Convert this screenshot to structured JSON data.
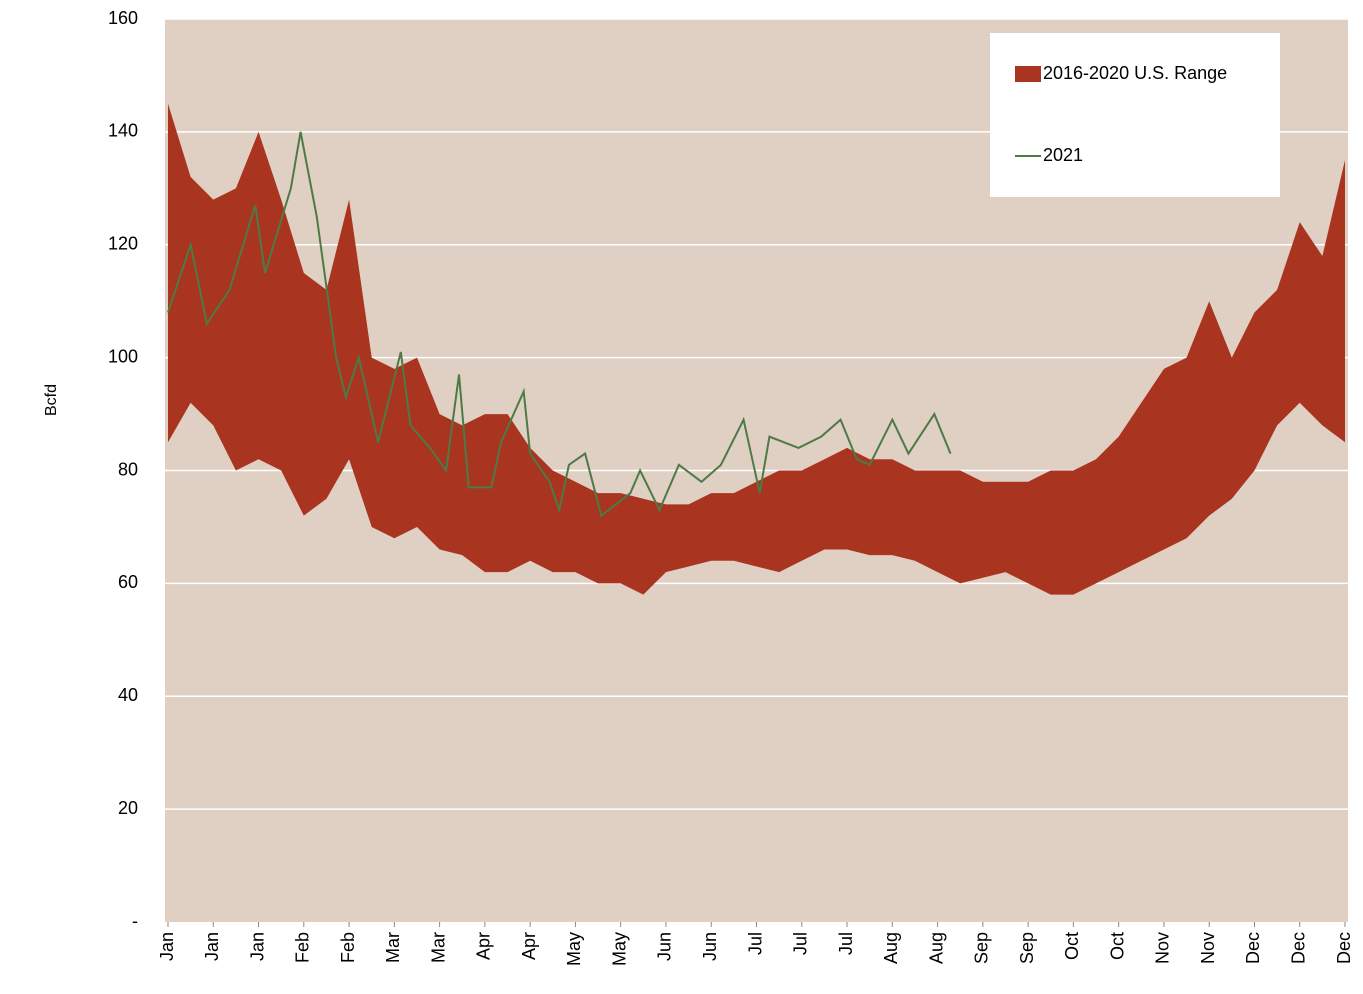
{
  "chart_data": {
    "type": "range-line",
    "ylabel": "Bcfd",
    "xlim": [
      1,
      365
    ],
    "xticks": [
      {
        "value": 1,
        "label": "Jan"
      },
      {
        "value": 15,
        "label": "Jan"
      },
      {
        "value": 29,
        "label": "Jan"
      },
      {
        "value": 43,
        "label": "Feb"
      },
      {
        "value": 57,
        "label": "Feb"
      },
      {
        "value": 71,
        "label": "Mar"
      },
      {
        "value": 85,
        "label": "Mar"
      },
      {
        "value": 99,
        "label": "Apr"
      },
      {
        "value": 113,
        "label": "Apr"
      },
      {
        "value": 127,
        "label": "May"
      },
      {
        "value": 141,
        "label": "May"
      },
      {
        "value": 155,
        "label": "Jun"
      },
      {
        "value": 169,
        "label": "Jun"
      },
      {
        "value": 183,
        "label": "Jul"
      },
      {
        "value": 197,
        "label": "Jul"
      },
      {
        "value": 211,
        "label": "Jul"
      },
      {
        "value": 225,
        "label": "Aug"
      },
      {
        "value": 239,
        "label": "Aug"
      },
      {
        "value": 253,
        "label": "Sep"
      },
      {
        "value": 267,
        "label": "Sep"
      },
      {
        "value": 281,
        "label": "Oct"
      },
      {
        "value": 295,
        "label": "Oct"
      },
      {
        "value": 309,
        "label": "Nov"
      },
      {
        "value": 323,
        "label": "Nov"
      },
      {
        "value": 337,
        "label": "Dec"
      },
      {
        "value": 351,
        "label": "Dec"
      },
      {
        "value": 365,
        "label": "Dec"
      }
    ],
    "ylim": [
      0,
      160
    ],
    "yticks": [
      {
        "value": 0,
        "label": "-"
      },
      20,
      40,
      60,
      80,
      100,
      120,
      140,
      160
    ],
    "grid": true,
    "background": "#e0cfc3",
    "legend": "upper right",
    "series": [
      {
        "name": "2016-2020 U.S. Range",
        "color": "#a9341f",
        "x": [
          1,
          8,
          15,
          22,
          29,
          36,
          43,
          50,
          57,
          64,
          71,
          78,
          85,
          92,
          99,
          106,
          113,
          120,
          127,
          134,
          141,
          148,
          155,
          162,
          169,
          176,
          183,
          190,
          197,
          204,
          211,
          218,
          225,
          232,
          239,
          246,
          253,
          260,
          267,
          274,
          281,
          288,
          295,
          302,
          309,
          316,
          323,
          330,
          337,
          344,
          351,
          358,
          365
        ],
        "low": [
          85,
          92,
          88,
          80,
          82,
          80,
          72,
          75,
          82,
          70,
          68,
          70,
          66,
          65,
          62,
          62,
          64,
          62,
          62,
          60,
          60,
          58,
          62,
          63,
          64,
          64,
          63,
          62,
          64,
          66,
          66,
          65,
          65,
          64,
          62,
          60,
          61,
          62,
          60,
          58,
          58,
          60,
          62,
          64,
          66,
          68,
          72,
          75,
          80,
          88,
          92,
          88,
          85
        ],
        "high": [
          145,
          132,
          128,
          130,
          140,
          128,
          115,
          112,
          128,
          100,
          98,
          100,
          90,
          88,
          90,
          90,
          84,
          80,
          78,
          76,
          76,
          75,
          74,
          74,
          76,
          76,
          78,
          80,
          80,
          82,
          84,
          82,
          82,
          80,
          80,
          80,
          78,
          78,
          78,
          80,
          80,
          82,
          86,
          92,
          98,
          100,
          110,
          100,
          108,
          112,
          124,
          118,
          135
        ]
      },
      {
        "name": "2021",
        "color": "#4d7a45",
        "x": [
          1,
          8,
          13,
          20,
          28,
          31,
          39,
          42,
          47,
          53,
          56,
          60,
          66,
          73,
          76,
          82,
          87,
          91,
          94,
          101,
          104,
          111,
          113,
          119,
          122,
          125,
          130,
          135,
          144,
          147,
          153,
          159,
          166,
          172,
          179,
          184,
          187,
          196,
          203,
          209,
          214,
          218,
          225,
          230,
          238,
          243
        ],
        "values": [
          108,
          120,
          106,
          112,
          127,
          115,
          130,
          140,
          125,
          100,
          93,
          100,
          85,
          101,
          88,
          84,
          80,
          97,
          77,
          77,
          85,
          94,
          83,
          78,
          73,
          81,
          83,
          72,
          76,
          80,
          73,
          81,
          78,
          81,
          89,
          76,
          86,
          84,
          86,
          89,
          82,
          81,
          89,
          83,
          90,
          83
        ]
      }
    ]
  }
}
